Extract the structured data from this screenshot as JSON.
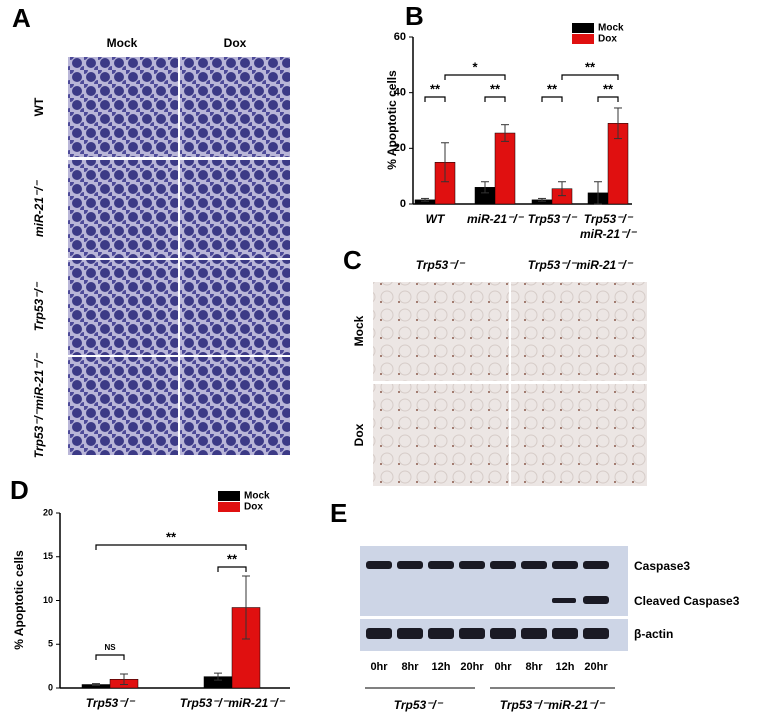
{
  "panel_a": {
    "letter": "A",
    "columns": [
      "Mock",
      "Dox"
    ],
    "rows": [
      "WT",
      "miR-21⁻/⁻",
      "Trp53⁻/⁻",
      "Trp53⁻/⁻miR-21⁻/⁻"
    ]
  },
  "panel_c": {
    "letter": "C",
    "columns": [
      "Trp53⁻/⁻",
      "Trp53⁻/⁻miR-21⁻/⁻"
    ],
    "rows": [
      "Mock",
      "Dox"
    ]
  },
  "panel_e": {
    "letter": "E",
    "bands": [
      "Caspase3",
      "Cleaved Caspase3",
      "β-actin"
    ],
    "lanes": [
      "0hr",
      "8hr",
      "12h",
      "20hr",
      "0hr",
      "8hr",
      "12h",
      "20hr"
    ],
    "groups": [
      "Trp53⁻/⁻",
      "Trp53⁻/⁻miR-21⁻/⁻"
    ]
  },
  "chart_data": [
    {
      "type": "bar",
      "letter": "B",
      "ylabel": "% Apoptotic cells",
      "categories": [
        "WT",
        "miR-21⁻/⁻",
        "Trp53⁻/⁻",
        "Trp53⁻/⁻ miR-21⁻/⁻"
      ],
      "series": [
        {
          "name": "Mock",
          "color": "#000000",
          "values": [
            1.5,
            6,
            1.5,
            4
          ],
          "errors": [
            0.5,
            2,
            0.5,
            4
          ]
        },
        {
          "name": "Dox",
          "color": "#e01010",
          "values": [
            15,
            25.5,
            5.5,
            29
          ],
          "errors": [
            7,
            3,
            2.5,
            5.5
          ]
        }
      ],
      "ylim": [
        0,
        60
      ],
      "yticks": [
        0,
        20,
        40,
        60
      ],
      "annotations": [
        "**",
        "*",
        "**",
        "**",
        "**",
        "**"
      ]
    },
    {
      "type": "bar",
      "letter": "D",
      "ylabel": "% Apoptotic cells",
      "categories": [
        "Trp53⁻/⁻",
        "Trp53⁻/⁻miR-21⁻/⁻"
      ],
      "series": [
        {
          "name": "Mock",
          "color": "#000000",
          "values": [
            0.4,
            1.3
          ],
          "errors": [
            0.1,
            0.4
          ]
        },
        {
          "name": "Dox",
          "color": "#e01010",
          "values": [
            1.0,
            9.2
          ],
          "errors": [
            0.6,
            3.6
          ]
        }
      ],
      "ylim": [
        0,
        20
      ],
      "yticks": [
        0,
        5,
        10,
        15,
        20
      ],
      "annotations": [
        "NS",
        "**",
        "**"
      ]
    }
  ]
}
